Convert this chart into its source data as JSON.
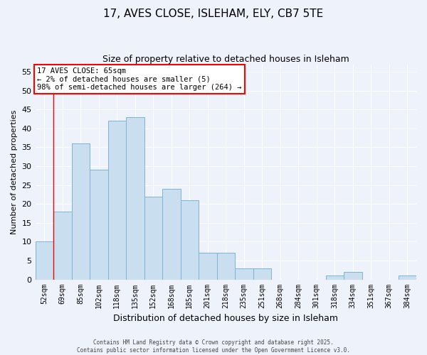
{
  "title1": "17, AVES CLOSE, ISLEHAM, ELY, CB7 5TE",
  "title2": "Size of property relative to detached houses in Isleham",
  "xlabel": "Distribution of detached houses by size in Isleham",
  "ylabel": "Number of detached properties",
  "bar_labels": [
    "52sqm",
    "69sqm",
    "85sqm",
    "102sqm",
    "118sqm",
    "135sqm",
    "152sqm",
    "168sqm",
    "185sqm",
    "201sqm",
    "218sqm",
    "235sqm",
    "251sqm",
    "268sqm",
    "284sqm",
    "301sqm",
    "318sqm",
    "334sqm",
    "351sqm",
    "367sqm",
    "384sqm"
  ],
  "bar_values": [
    10,
    18,
    36,
    29,
    42,
    43,
    22,
    24,
    21,
    7,
    7,
    3,
    3,
    0,
    0,
    0,
    1,
    2,
    0,
    0,
    1
  ],
  "bar_color": "#c9dff0",
  "bar_edge_color": "#7fb3d3",
  "ylim": [
    0,
    57
  ],
  "yticks": [
    0,
    5,
    10,
    15,
    20,
    25,
    30,
    35,
    40,
    45,
    50,
    55
  ],
  "annotation_title": "17 AVES CLOSE: 65sqm",
  "annotation_line1": "← 2% of detached houses are smaller (5)",
  "annotation_line2": "98% of semi-detached houses are larger (264) →",
  "vline_x_index": 1,
  "background_color": "#eef2fb",
  "grid_color": "#ffffff",
  "footer1": "Contains HM Land Registry data © Crown copyright and database right 2025.",
  "footer2": "Contains public sector information licensed under the Open Government Licence v3.0."
}
